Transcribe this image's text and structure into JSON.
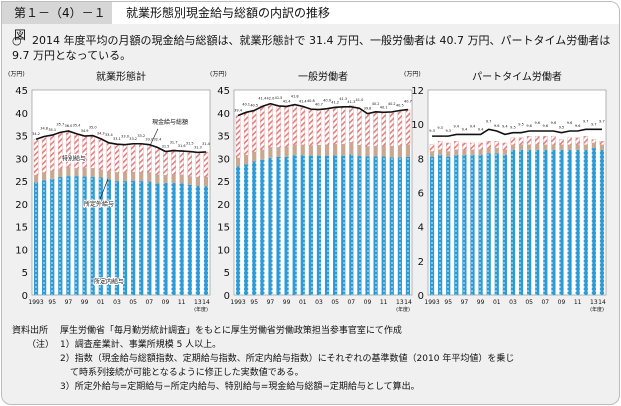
{
  "figure": {
    "number": "第１－（4）－１図",
    "title": "就業形態別現金給与総額の内訳の推移",
    "summary_bullet": "○",
    "summary": "2014 年度平均の月額の現金給与総額は、就業形態計で 31.4 万円、一般労働者は 40.7 万円、パートタイム労働者は 9.7 万円となっている。"
  },
  "colors": {
    "base": "#2e9bd6",
    "overtime": "#c9a88f",
    "special": "#e9a6a6",
    "line": "#111111"
  },
  "chart_data": [
    {
      "type": "bar",
      "stacked": true,
      "title": "就業形態計",
      "ylabel": "(万円)",
      "xlabel": "(年度)",
      "ylim": [
        0,
        45
      ],
      "yticks": [
        0,
        5,
        10,
        15,
        20,
        25,
        30,
        35,
        40,
        45
      ],
      "categories": [
        "1993",
        "94",
        "95",
        "96",
        "97",
        "98",
        "99",
        "2000",
        "01",
        "02",
        "03",
        "04",
        "05",
        "06",
        "07",
        "08",
        "09",
        "10",
        "11",
        "12",
        "13",
        "14"
      ],
      "xtick_labels": [
        "1993",
        "",
        "95",
        "",
        "97",
        "",
        "99",
        "",
        "01",
        "",
        "03",
        "",
        "05",
        "",
        "07",
        "",
        "09",
        "",
        "11",
        "",
        "13",
        "14"
      ],
      "series": [
        {
          "name": "所定内給与",
          "values": [
            24.7,
            25.2,
            25.5,
            25.9,
            26.1,
            26.1,
            26.0,
            25.9,
            25.8,
            25.4,
            25.0,
            25.0,
            25.1,
            25.0,
            24.9,
            24.5,
            24.6,
            24.6,
            24.5,
            24.2,
            24.0,
            23.9
          ]
        },
        {
          "name": "所定外給与",
          "values": [
            1.6,
            1.7,
            1.8,
            1.8,
            1.9,
            1.7,
            1.8,
            1.9,
            1.7,
            1.7,
            1.9,
            1.9,
            1.9,
            2.0,
            2.0,
            1.9,
            1.7,
            1.9,
            1.9,
            1.8,
            1.9,
            2.0
          ]
        },
        {
          "name": "特別給与",
          "values": [
            7.9,
            7.9,
            7.8,
            8.0,
            8.0,
            7.6,
            7.1,
            7.1,
            6.8,
            6.3,
            6.1,
            6.1,
            6.2,
            6.2,
            6.1,
            5.9,
            5.3,
            5.4,
            5.4,
            5.5,
            5.3,
            5.5
          ]
        }
      ],
      "line": {
        "name": "現金給与総額",
        "values": [
          34.2,
          34.8,
          35.1,
          35.7,
          36.0,
          35.4,
          34.9,
          35.0,
          34.3,
          33.4,
          33.1,
          33.0,
          33.2,
          33.2,
          33.0,
          32.4,
          31.5,
          31.7,
          31.6,
          31.5,
          31.3,
          31.4
        ]
      },
      "annotations": [
        "現金給与総額",
        "特別給与",
        "所定外給与",
        "所定内給与"
      ]
    },
    {
      "type": "bar",
      "stacked": true,
      "title": "一般労働者",
      "ylabel": "(万円)",
      "xlabel": "(年度)",
      "ylim": [
        0,
        45
      ],
      "yticks": [
        0,
        5,
        10,
        15,
        20,
        25,
        30,
        35,
        40,
        45
      ],
      "categories": [
        "1993",
        "94",
        "95",
        "96",
        "97",
        "98",
        "99",
        "2000",
        "01",
        "02",
        "03",
        "04",
        "05",
        "06",
        "07",
        "08",
        "09",
        "10",
        "11",
        "12",
        "13",
        "14"
      ],
      "xtick_labels": [
        "1993",
        "",
        "95",
        "",
        "97",
        "",
        "99",
        "",
        "01",
        "",
        "03",
        "",
        "05",
        "",
        "07",
        "",
        "09",
        "",
        "11",
        "",
        "13",
        "14"
      ],
      "series": [
        {
          "name": "所定内給与",
          "values": [
            28.2,
            28.7,
            29.3,
            29.7,
            30.1,
            30.3,
            30.3,
            30.7,
            30.7,
            30.6,
            30.6,
            30.6,
            30.7,
            30.6,
            30.9,
            30.5,
            30.4,
            30.4,
            30.4,
            30.2,
            30.2,
            30.3
          ]
        },
        {
          "name": "所定外給与",
          "values": [
            1.9,
            2.0,
            2.1,
            2.2,
            2.3,
            2.1,
            2.2,
            2.3,
            2.3,
            2.2,
            2.3,
            2.4,
            2.4,
            2.5,
            2.6,
            2.4,
            2.2,
            2.3,
            2.4,
            2.5,
            2.6,
            2.7
          ]
        },
        {
          "name": "特別給与",
          "values": [
            9.3,
            9.4,
            9.2,
            9.5,
            9.6,
            9.1,
            8.7,
            8.8,
            8.3,
            8.0,
            7.8,
            8.0,
            8.1,
            8.2,
            8.1,
            8.0,
            7.2,
            7.3,
            7.4,
            7.3,
            7.5,
            7.7
          ]
        }
      ],
      "line": {
        "name": "現金給与総額",
        "values": [
          39.4,
          40.1,
          40.5,
          41.4,
          42.0,
          41.5,
          41.4,
          41.8,
          41.4,
          40.8,
          40.7,
          40.9,
          41.2,
          41.3,
          41.3,
          41.0,
          39.8,
          40.2,
          40.1,
          40.2,
          40.5,
          40.7
        ]
      }
    },
    {
      "type": "bar",
      "stacked": true,
      "title": "パートタイム労働者",
      "ylabel": "(万円)",
      "xlabel": "(年度)",
      "ylim": [
        0,
        12
      ],
      "yticks": [
        0,
        2,
        4,
        6,
        8,
        10,
        12
      ],
      "categories": [
        "1993",
        "94",
        "95",
        "96",
        "97",
        "98",
        "99",
        "2000",
        "01",
        "02",
        "03",
        "04",
        "05",
        "06",
        "07",
        "08",
        "09",
        "10",
        "11",
        "12",
        "13",
        "14"
      ],
      "xtick_labels": [
        "1993",
        "",
        "95",
        "",
        "97",
        "",
        "99",
        "",
        "01",
        "",
        "03",
        "",
        "05",
        "",
        "07",
        "",
        "09",
        "",
        "11",
        "",
        "13",
        "14"
      ],
      "series": [
        {
          "name": "所定内給与",
          "values": [
            8.1,
            8.2,
            8.1,
            8.2,
            8.2,
            8.2,
            8.2,
            8.3,
            8.3,
            8.2,
            8.5,
            8.5,
            8.5,
            8.5,
            8.5,
            8.5,
            8.5,
            8.5,
            8.5,
            8.5,
            8.6,
            8.5
          ]
        },
        {
          "name": "所定外給与",
          "values": [
            0.3,
            0.3,
            0.3,
            0.3,
            0.3,
            0.3,
            0.3,
            0.3,
            0.3,
            0.3,
            0.3,
            0.3,
            0.3,
            0.3,
            0.3,
            0.3,
            0.3,
            0.3,
            0.3,
            0.3,
            0.3,
            0.3
          ]
        },
        {
          "name": "特別給与",
          "values": [
            0.4,
            0.5,
            0.5,
            0.5,
            0.4,
            0.4,
            0.4,
            0.4,
            0.4,
            0.4,
            0.4,
            0.4,
            0.5,
            0.5,
            0.5,
            0.5,
            0.3,
            0.4,
            0.4,
            0.5,
            0.2,
            0.2
          ]
        }
      ],
      "line": {
        "name": "現金給与総額",
        "values": [
          9.3,
          9.3,
          9.3,
          9.4,
          9.4,
          9.4,
          9.4,
          9.7,
          9.6,
          9.4,
          9.5,
          9.5,
          9.6,
          9.6,
          9.6,
          9.6,
          9.5,
          9.6,
          9.6,
          9.7,
          9.7,
          9.7
        ]
      }
    }
  ],
  "notes": {
    "source_label": "資料出所",
    "source_text": "厚生労働省「毎月勤労統計調査」をもとに厚生労働省労働政策担当参事官室にて作成",
    "note_label": "（注）",
    "items": [
      "1）調査産業計、事業所規模 5 人以上。",
      "2）指数（現金給与総額指数、定期給与指数、所定内給与指数）にそれぞれの基準数値（2010 年平均値）を乗じ",
      "て時系列接続が可能となるように修正した実数値である。",
      "3）所定外給与=定期給与−所定内給与、特別給与=現金給与総額−定期給与として算出。"
    ]
  }
}
